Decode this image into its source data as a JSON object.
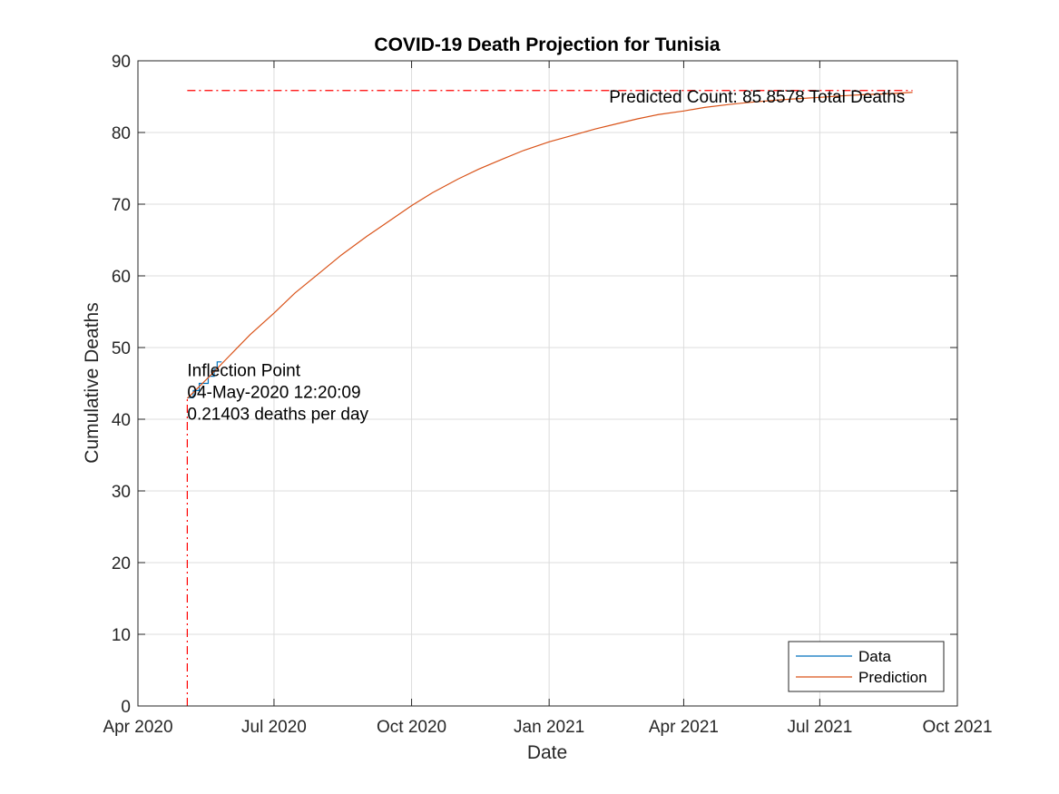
{
  "chart_data": {
    "type": "line",
    "title": "COVID-19 Death Projection for Tunisia",
    "xlabel": "Date",
    "ylabel": "Cumulative Deaths",
    "x_type": "date",
    "xlim": [
      "2020-04-01",
      "2021-10-01"
    ],
    "ylim": [
      0,
      90
    ],
    "x_ticks": [
      {
        "date": "2020-04-01",
        "label": "Apr 2020"
      },
      {
        "date": "2020-07-01",
        "label": "Jul 2020"
      },
      {
        "date": "2020-10-01",
        "label": "Oct 2020"
      },
      {
        "date": "2021-01-01",
        "label": "Jan 2021"
      },
      {
        "date": "2021-04-01",
        "label": "Apr 2021"
      },
      {
        "date": "2021-07-01",
        "label": "Jul 2021"
      },
      {
        "date": "2021-10-01",
        "label": "Oct 2021"
      }
    ],
    "y_ticks": [
      0,
      10,
      20,
      30,
      40,
      50,
      60,
      70,
      80,
      90
    ],
    "grid": true,
    "legend_position": "bottom-right",
    "series": [
      {
        "name": "Data",
        "color": "#0072BD",
        "style": "stairs",
        "x": [
          "2020-05-04",
          "2020-05-06",
          "2020-05-08",
          "2020-05-10",
          "2020-05-12",
          "2020-05-14",
          "2020-05-16",
          "2020-05-18",
          "2020-05-20",
          "2020-05-22",
          "2020-05-24",
          "2020-05-27"
        ],
        "y": [
          43,
          43,
          44,
          44,
          45,
          45,
          45,
          46,
          46,
          47,
          48,
          48
        ]
      },
      {
        "name": "Prediction",
        "color": "#D95319",
        "style": "line",
        "x": [
          "2020-05-04",
          "2020-05-19",
          "2020-06-01",
          "2020-06-15",
          "2020-07-01",
          "2020-07-15",
          "2020-08-01",
          "2020-08-15",
          "2020-09-01",
          "2020-09-15",
          "2020-10-01",
          "2020-10-15",
          "2020-11-01",
          "2020-11-15",
          "2020-12-01",
          "2020-12-15",
          "2021-01-01",
          "2021-01-15",
          "2021-02-01",
          "2021-02-15",
          "2021-03-01",
          "2021-03-15",
          "2021-04-01",
          "2021-04-15",
          "2021-05-01",
          "2021-05-15",
          "2021-06-01",
          "2021-06-15",
          "2021-07-01",
          "2021-07-15",
          "2021-08-01",
          "2021-08-15",
          "2021-09-01"
        ],
        "y": [
          42.9,
          46.0,
          48.8,
          51.8,
          54.8,
          57.6,
          60.5,
          62.9,
          65.5,
          67.5,
          69.8,
          71.6,
          73.5,
          74.9,
          76.3,
          77.5,
          78.7,
          79.5,
          80.5,
          81.2,
          81.9,
          82.5,
          83.0,
          83.5,
          83.9,
          84.2,
          84.5,
          84.7,
          84.9,
          85.1,
          85.3,
          85.4,
          85.6
        ]
      }
    ],
    "reference_lines": [
      {
        "orientation": "horizontal",
        "y": 85.8578,
        "x_start": "2020-05-04",
        "x_end": "2021-09-01",
        "color": "#ff0000",
        "style": "dash-dot"
      },
      {
        "orientation": "vertical",
        "x": "2020-05-04",
        "y_start": 0,
        "y_end": 42.9,
        "color": "#ff0000",
        "style": "dash-dot"
      }
    ],
    "annotations": [
      {
        "lines": [
          "Inflection Point",
          "04-May-2020 12:20:09",
          "0.21403 deaths per day"
        ],
        "x": "2020-05-04",
        "y": 46
      },
      {
        "lines": [
          "Predicted Count: 85.8578 Total Deaths"
        ],
        "x": "2021-08-27",
        "y": 84.2,
        "align": "end"
      }
    ]
  }
}
